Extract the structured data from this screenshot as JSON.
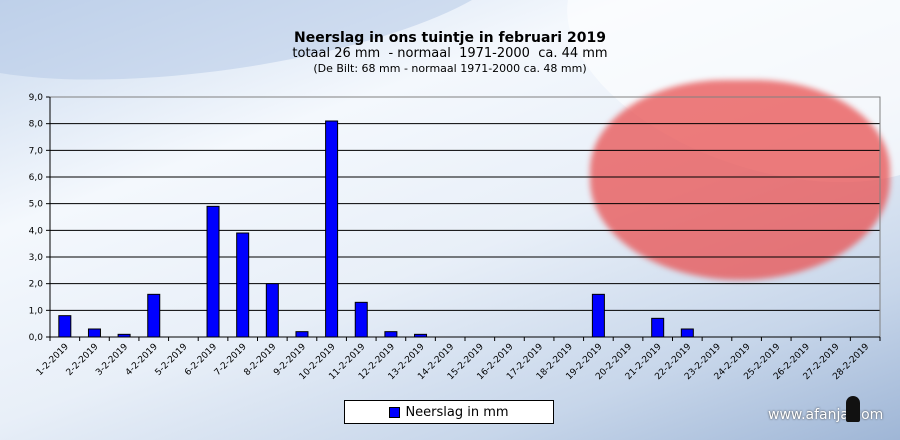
{
  "chart_data": {
    "type": "bar",
    "title": "Neerslag in ons tuintje in februari 2019",
    "subtitle": "totaal 26 mm  - normaal  1971-2000  ca. 44 mm",
    "subtitle2": "(De Bilt: 68 mm - normaal 1971-2000 ca. 48 mm)",
    "categories": [
      "1-2-2019",
      "2-2-2019",
      "3-2-2019",
      "4-2-2019",
      "5-2-2019",
      "6-2-2019",
      "7-2-2019",
      "8-2-2019",
      "9-2-2019",
      "10-2-2019",
      "11-2-2019",
      "12-2-2019",
      "13-2-2019",
      "14-2-2019",
      "15-2-2019",
      "16-2-2019",
      "17-2-2019",
      "18-2-2019",
      "19-2-2019",
      "20-2-2019",
      "21-2-2019",
      "22-2-2019",
      "23-2-2019",
      "24-2-2019",
      "25-2-2019",
      "26-2-2019",
      "27-2-2019",
      "28-2-2019"
    ],
    "series": [
      {
        "name": "Neerslag in mm",
        "color": "#0000ff",
        "values": [
          0.8,
          0.3,
          0.1,
          1.6,
          0,
          4.9,
          3.9,
          2.0,
          0.2,
          8.1,
          1.3,
          0.2,
          0.1,
          0,
          0,
          0,
          0,
          0,
          1.6,
          0,
          0.7,
          0.3,
          0,
          0,
          0,
          0,
          0,
          0
        ]
      }
    ],
    "ylim": [
      0,
      9
    ],
    "yticks": [
      "0,0",
      "1,0",
      "2,0",
      "3,0",
      "4,0",
      "5,0",
      "6,0",
      "7,0",
      "8,0",
      "9,0"
    ],
    "grid": true,
    "legend": "bottom"
  },
  "watermark": "www.afanja.com"
}
